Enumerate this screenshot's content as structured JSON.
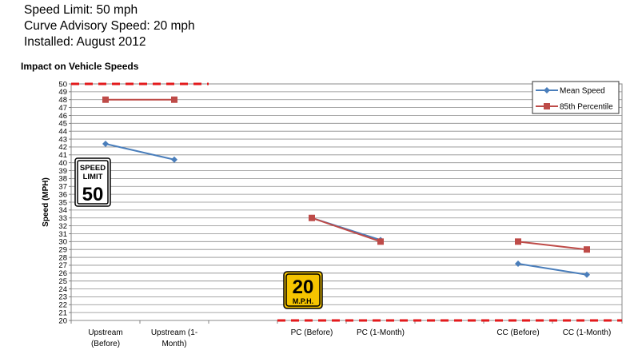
{
  "header": {
    "line1": "Speed Limit: 50 mph",
    "line2": "Curve Advisory Speed: 20 mph",
    "line3": "Installed: August 2012"
  },
  "chart_data": {
    "type": "line",
    "title": "Impact on Vehicle Speeds",
    "ylabel": "Speed (MPH)",
    "xlabel": "",
    "ylim": [
      20,
      50
    ],
    "y_ticks": [
      20,
      21,
      22,
      23,
      24,
      25,
      26,
      27,
      28,
      29,
      30,
      31,
      32,
      33,
      34,
      35,
      36,
      37,
      38,
      39,
      40,
      41,
      42,
      43,
      44,
      45,
      46,
      47,
      48,
      49,
      50
    ],
    "categories": [
      [
        "Upstream",
        "(Before)"
      ],
      [
        "Upstream (1-",
        "Month)"
      ],
      [
        "PC (Before)"
      ],
      [
        "PC (1-Month)"
      ],
      [
        "CC (Before)"
      ],
      [
        "CC (1-Month)"
      ]
    ],
    "series": [
      {
        "name": "Mean Speed",
        "color": "#4a7ebb",
        "marker": "diamond",
        "groups": [
          [
            42.4,
            40.4
          ],
          [
            33.0,
            30.2
          ],
          [
            27.2,
            25.8
          ]
        ]
      },
      {
        "name": "85th Percentile",
        "color": "#be4b48",
        "marker": "square",
        "groups": [
          [
            48,
            48
          ],
          [
            33,
            30
          ],
          [
            30,
            29
          ]
        ]
      }
    ],
    "reference_lines": [
      {
        "value": 50,
        "color": "#e31a1c",
        "style": "dashed",
        "span": "upstream"
      },
      {
        "value": 20,
        "color": "#e31a1c",
        "style": "dashed",
        "span": "curve"
      }
    ],
    "grid": true,
    "legend": "top-right",
    "signs": {
      "speed_limit": {
        "line1": "SPEED",
        "line2": "LIMIT",
        "value": "50"
      },
      "advisory": {
        "value": "20",
        "unit": "M.P.H."
      }
    }
  }
}
